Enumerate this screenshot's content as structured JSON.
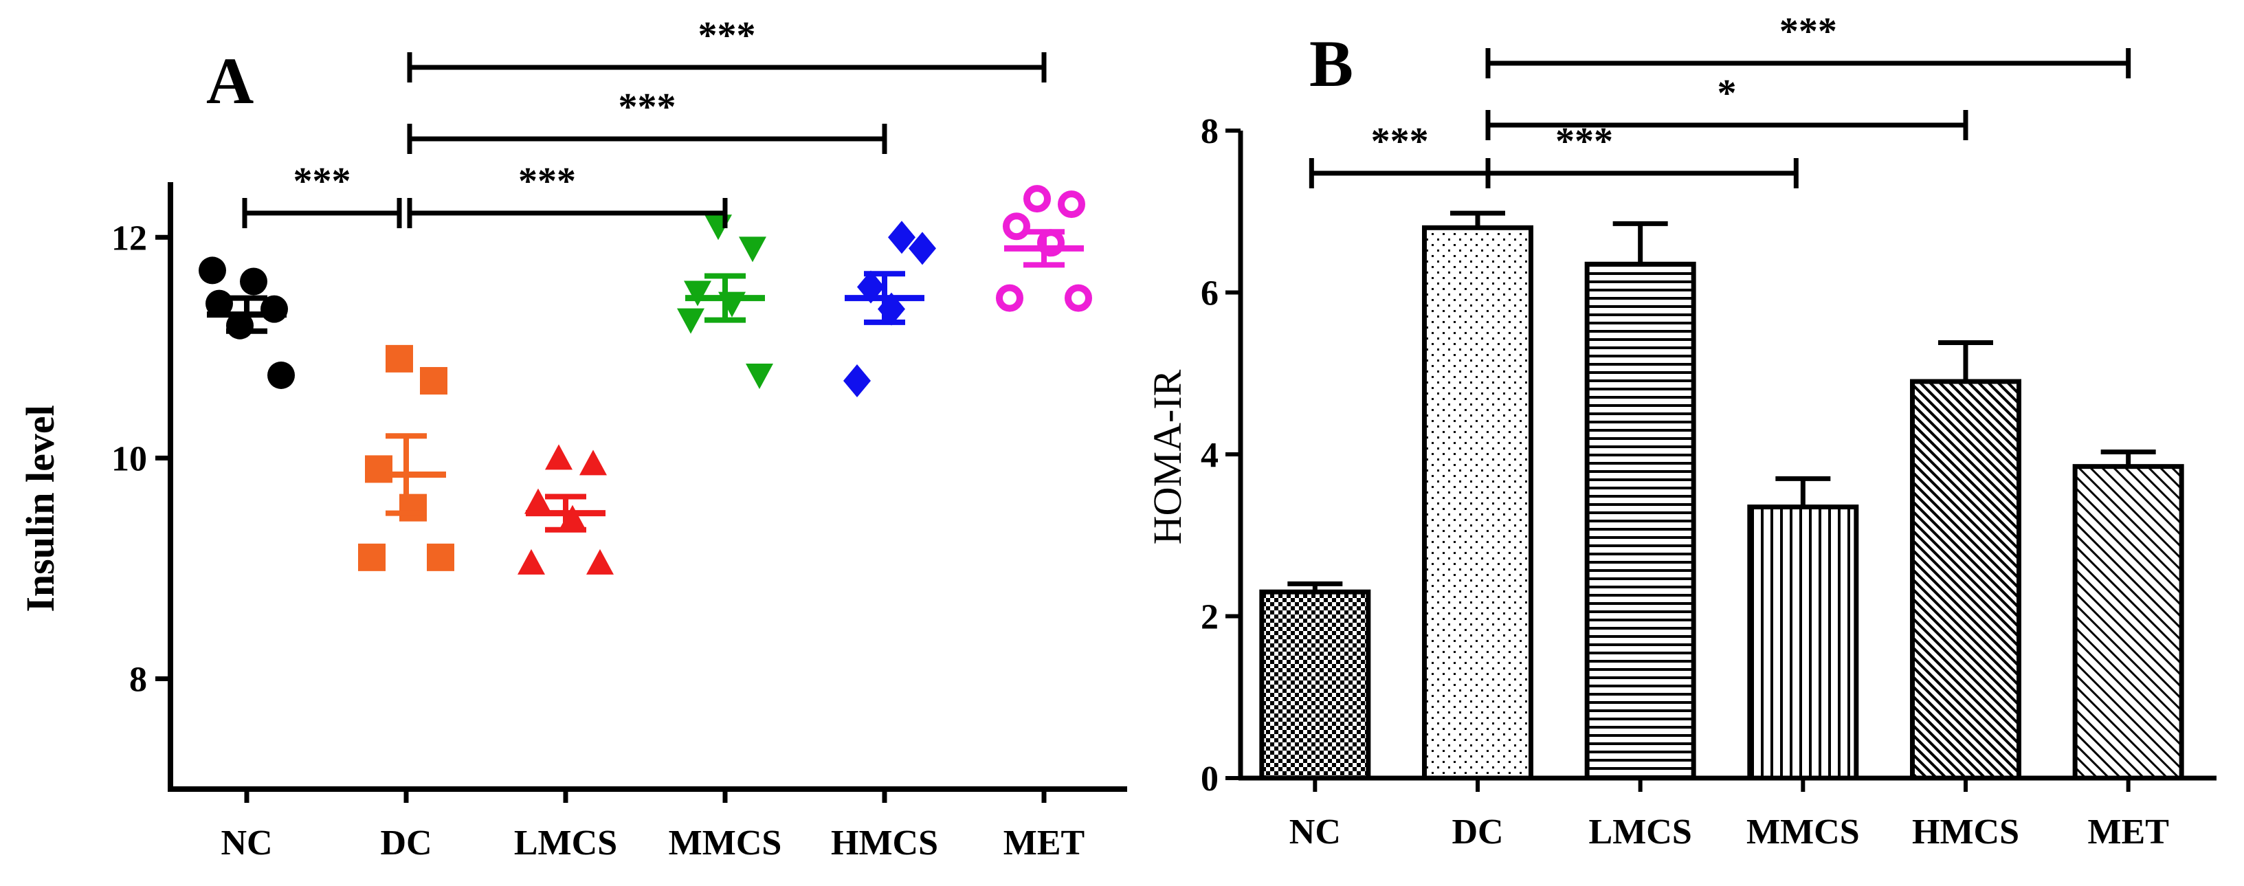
{
  "chart_data": [
    {
      "type": "scatter",
      "panel": "A",
      "ylabel": "Insulin level",
      "xlabel": "",
      "ylim": [
        7,
        12.5
      ],
      "yticks": [
        8,
        10,
        12
      ],
      "categories": [
        "NC",
        "DC",
        "LMCS",
        "MMCS",
        "HMCS",
        "MET"
      ],
      "groups": [
        {
          "name": "NC",
          "color": "#000000",
          "marker": "circle",
          "points": [
            11.2,
            11.35,
            11.4,
            11.6,
            11.7,
            10.75
          ],
          "mean": 11.3,
          "sem": 0.15
        },
        {
          "name": "DC",
          "color": "#f26522",
          "marker": "square",
          "points": [
            10.9,
            10.7,
            9.9,
            9.55,
            9.1,
            9.1
          ],
          "mean": 9.85,
          "sem": 0.35
        },
        {
          "name": "LMCS",
          "color": "#ee1c1c",
          "marker": "triangle-up",
          "points": [
            10.0,
            9.95,
            9.6,
            9.45,
            9.05,
            9.05
          ],
          "mean": 9.5,
          "sem": 0.15
        },
        {
          "name": "MMCS",
          "color": "#12a812",
          "marker": "triangle-down",
          "points": [
            12.1,
            11.9,
            11.5,
            11.4,
            11.25,
            10.75
          ],
          "mean": 11.45,
          "sem": 0.2
        },
        {
          "name": "HMCS",
          "color": "#1010ee",
          "marker": "diamond",
          "points": [
            12.0,
            11.9,
            11.55,
            11.35,
            10.7
          ],
          "mean": 11.45,
          "sem": 0.22
        },
        {
          "name": "MET",
          "color": "#ee1ed6",
          "marker": "circle-open",
          "points": [
            12.35,
            12.3,
            12.1,
            11.95,
            11.45,
            11.45
          ],
          "mean": 11.9,
          "sem": 0.15
        }
      ],
      "annotations": [
        {
          "from": "NC",
          "to": "DC",
          "label": "***"
        },
        {
          "from": "DC",
          "to": "MMCS",
          "label": "***"
        },
        {
          "from": "DC",
          "to": "HMCS",
          "label": "***"
        },
        {
          "from": "DC",
          "to": "MET",
          "label": "***"
        }
      ]
    },
    {
      "type": "bar",
      "panel": "B",
      "ylabel": "HOMA-IR",
      "xlabel": "",
      "ylim": [
        0,
        8
      ],
      "yticks": [
        0,
        2,
        4,
        6,
        8
      ],
      "categories": [
        "NC",
        "DC",
        "LMCS",
        "MMCS",
        "HMCS",
        "MET"
      ],
      "values": [
        2.3,
        6.8,
        6.35,
        3.35,
        4.9,
        3.85
      ],
      "errors": [
        0.1,
        0.18,
        0.5,
        0.35,
        0.48,
        0.18
      ],
      "patterns": [
        "checker",
        "dots",
        "horizontal",
        "vertical",
        "diagonal-dense",
        "diagonal"
      ],
      "annotations": [
        {
          "from": "NC",
          "to": "DC",
          "label": "***"
        },
        {
          "from": "DC",
          "to": "MMCS",
          "label": "***"
        },
        {
          "from": "DC",
          "to": "HMCS",
          "label": "*"
        },
        {
          "from": "DC",
          "to": "MET",
          "label": "***"
        }
      ]
    }
  ]
}
